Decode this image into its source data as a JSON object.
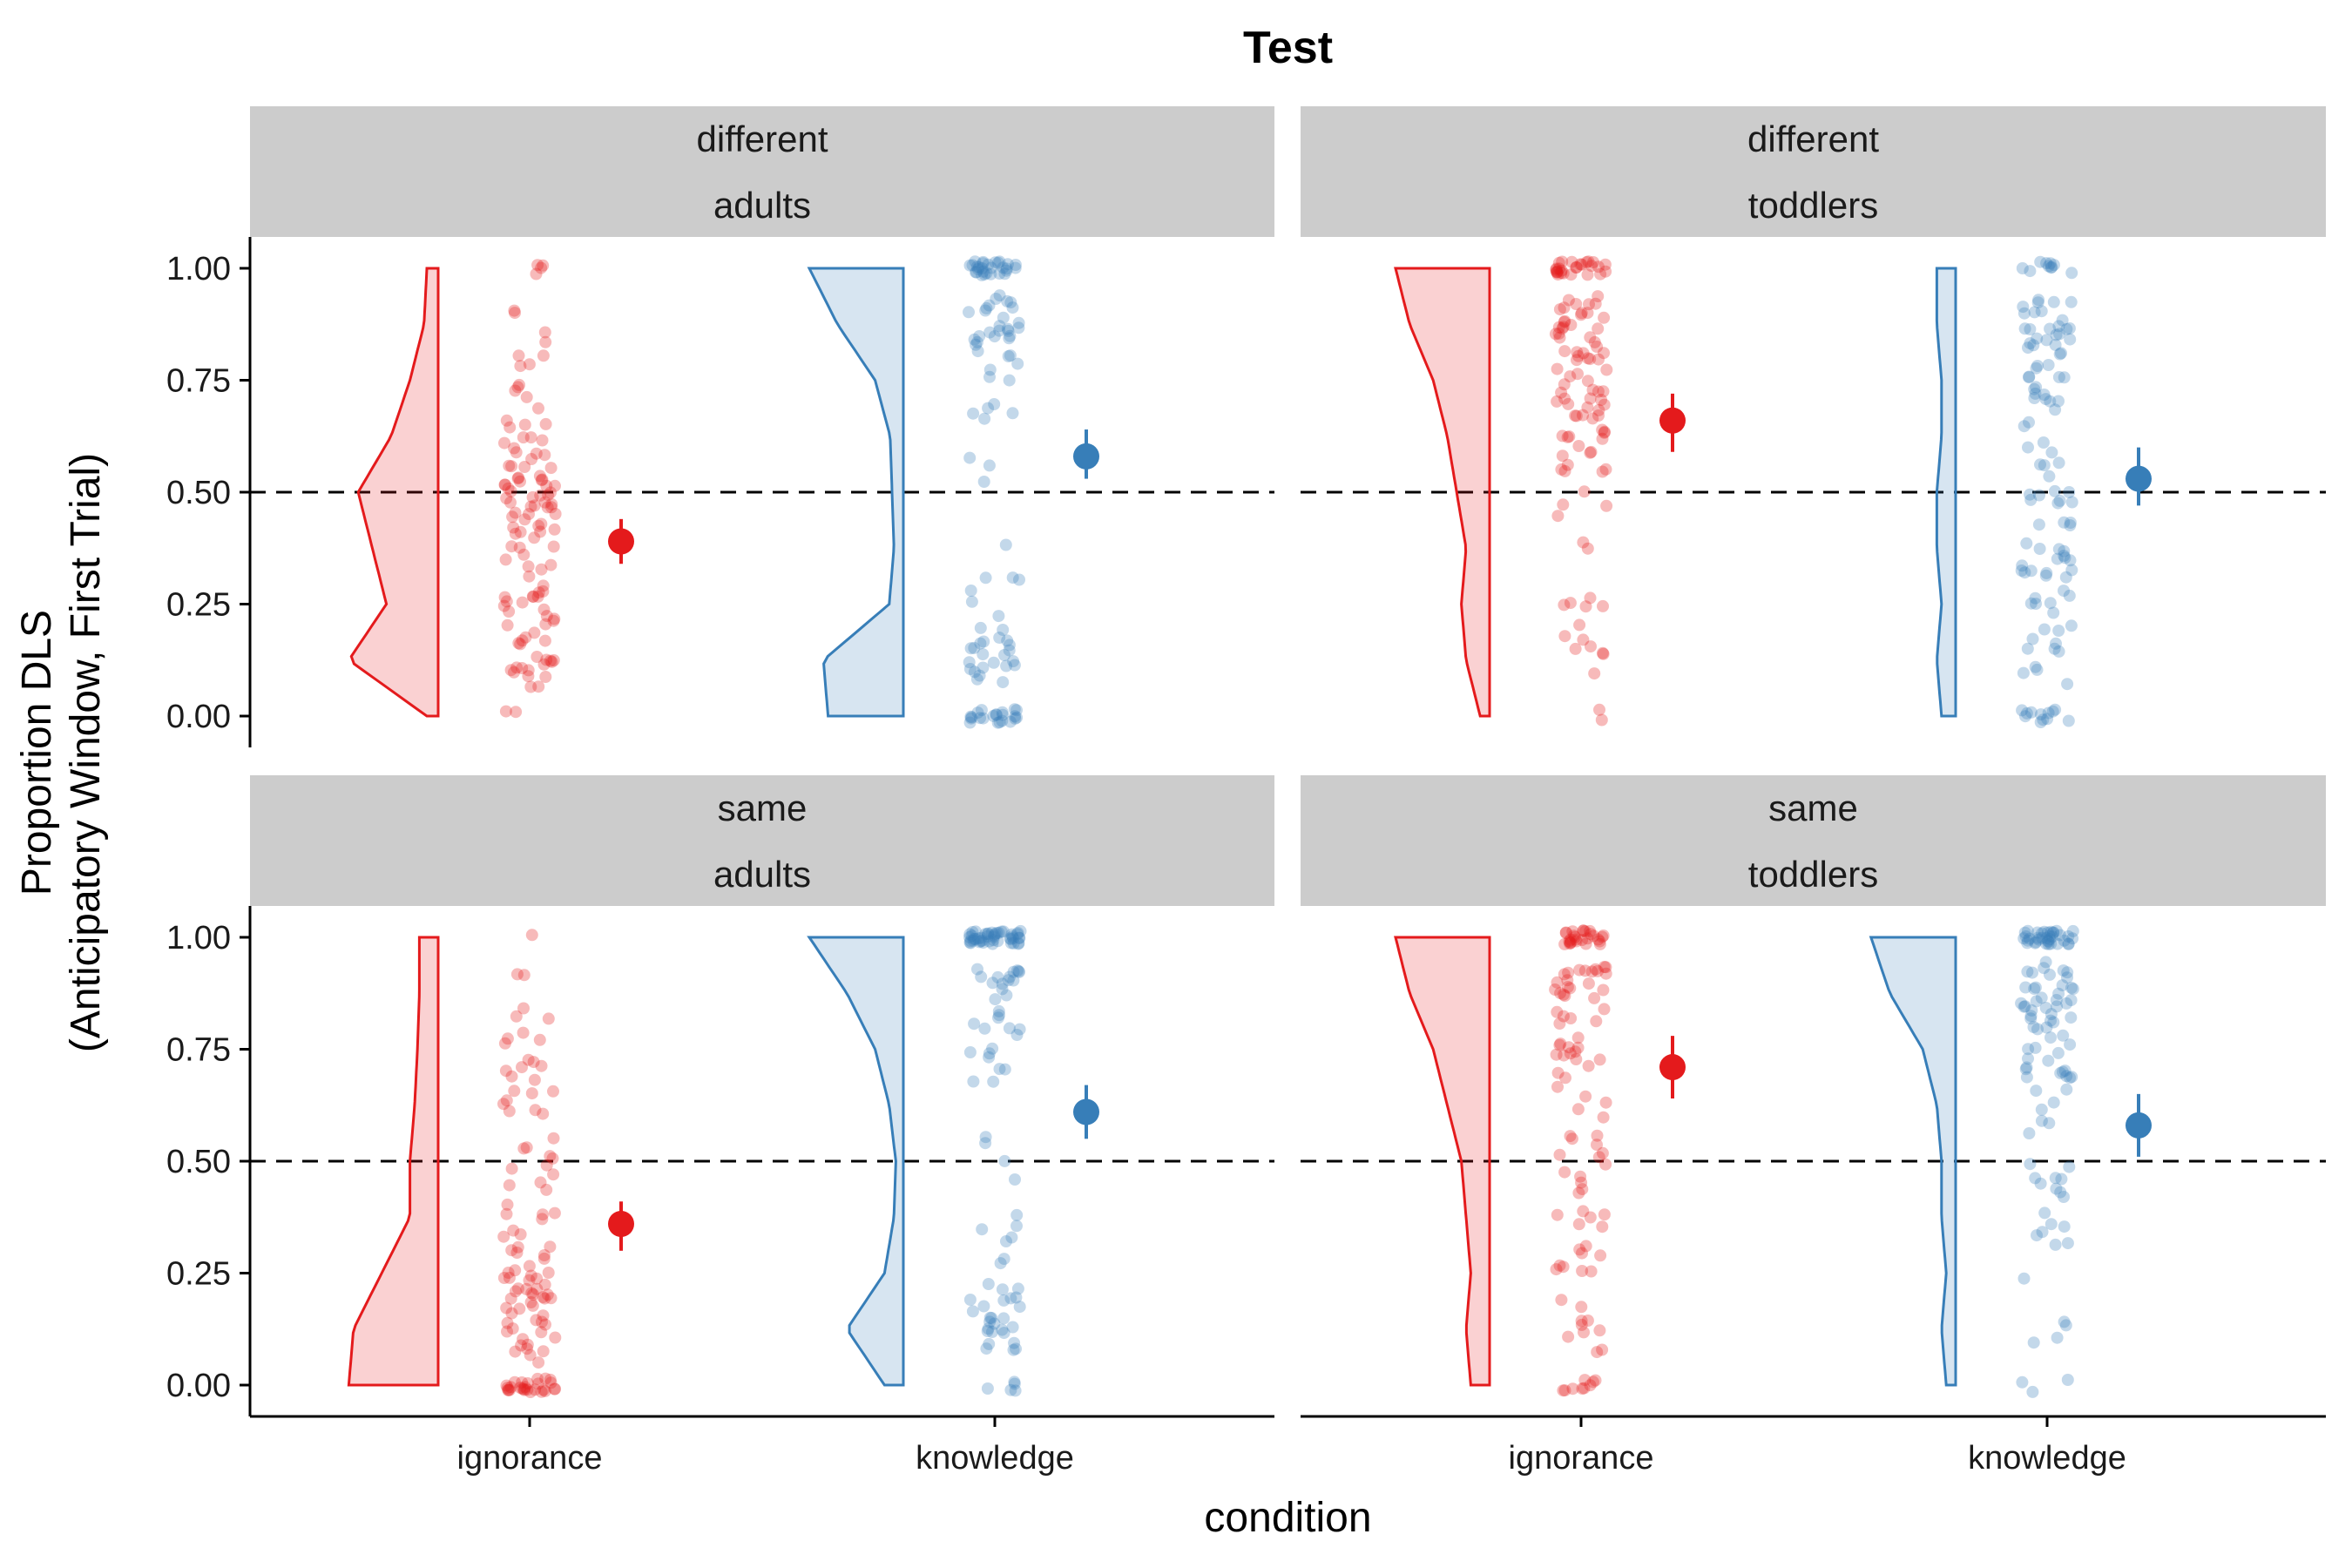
{
  "chart_data": {
    "type": "raincloud",
    "title": "Test",
    "xlabel": "condition",
    "ylabel_line1": "Proportion DLS",
    "ylabel_line2": "(Anticipatory Window, First Trial)",
    "categories": [
      "ignorance",
      "knowledge"
    ],
    "y_ticks": [
      "1.00",
      "0.75",
      "0.50",
      "0.25",
      "0.00"
    ],
    "ylim": [
      -0.07,
      1.07
    ],
    "reference_line": 0.5,
    "colors": {
      "ignorance": "#e41a1c",
      "knowledge": "#377eb8"
    },
    "panels": [
      {
        "row": 0,
        "col": 0,
        "strip_top": "different",
        "strip_bottom": "adults",
        "means": [
          {
            "category": "ignorance",
            "mean": 0.39,
            "lo": 0.34,
            "hi": 0.44
          },
          {
            "category": "knowledge",
            "mean": 0.58,
            "lo": 0.53,
            "hi": 0.64
          }
        ]
      },
      {
        "row": 0,
        "col": 1,
        "strip_top": "different",
        "strip_bottom": "toddlers",
        "means": [
          {
            "category": "ignorance",
            "mean": 0.66,
            "lo": 0.59,
            "hi": 0.72
          },
          {
            "category": "knowledge",
            "mean": 0.53,
            "lo": 0.47,
            "hi": 0.6
          }
        ]
      },
      {
        "row": 1,
        "col": 0,
        "strip_top": "same",
        "strip_bottom": "adults",
        "means": [
          {
            "category": "ignorance",
            "mean": 0.36,
            "lo": 0.3,
            "hi": 0.41
          },
          {
            "category": "knowledge",
            "mean": 0.61,
            "lo": 0.55,
            "hi": 0.67
          }
        ]
      },
      {
        "row": 1,
        "col": 1,
        "strip_top": "same",
        "strip_bottom": "toddlers",
        "means": [
          {
            "category": "ignorance",
            "mean": 0.71,
            "lo": 0.64,
            "hi": 0.78
          },
          {
            "category": "knowledge",
            "mean": 0.58,
            "lo": 0.51,
            "hi": 0.65
          }
        ]
      }
    ]
  }
}
